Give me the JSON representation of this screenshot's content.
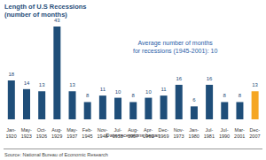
{
  "chart_data": {
    "type": "bar",
    "title": "Length of U.S Recessions",
    "subtitle": "(number of months)",
    "annotation": "Average number of months\nfor recessions (1945-2001): 10",
    "x_label": "Date recessions began",
    "source": "Source: National Bureau of Economic Research",
    "categories": [
      "Jan-1920",
      "May-1923",
      "Oct-1926",
      "Aug-1929",
      "May-1937",
      "Feb-1945",
      "Nov-1948",
      "Jul-1953",
      "Aug-1957",
      "Apr-1960",
      "Dec-1969",
      "Nov-1973",
      "Jan-1980",
      "Jul-1981",
      "Jul-1990",
      "Mar-2001",
      "Dec-2007"
    ],
    "values": [
      18,
      14,
      13,
      43,
      13,
      8,
      11,
      10,
      8,
      10,
      11,
      16,
      6,
      16,
      8,
      8,
      13
    ],
    "colors": [
      "#1f4e79",
      "#1f4e79",
      "#1f4e79",
      "#1f4e79",
      "#1f4e79",
      "#1f4e79",
      "#1f4e79",
      "#1f4e79",
      "#1f4e79",
      "#1f4e79",
      "#1f4e79",
      "#1f4e79",
      "#1f4e79",
      "#1f4e79",
      "#1f4e79",
      "#1f4e79",
      "#f5a623"
    ],
    "data_labels": true,
    "tick_labels": "x",
    "grid": false
  }
}
